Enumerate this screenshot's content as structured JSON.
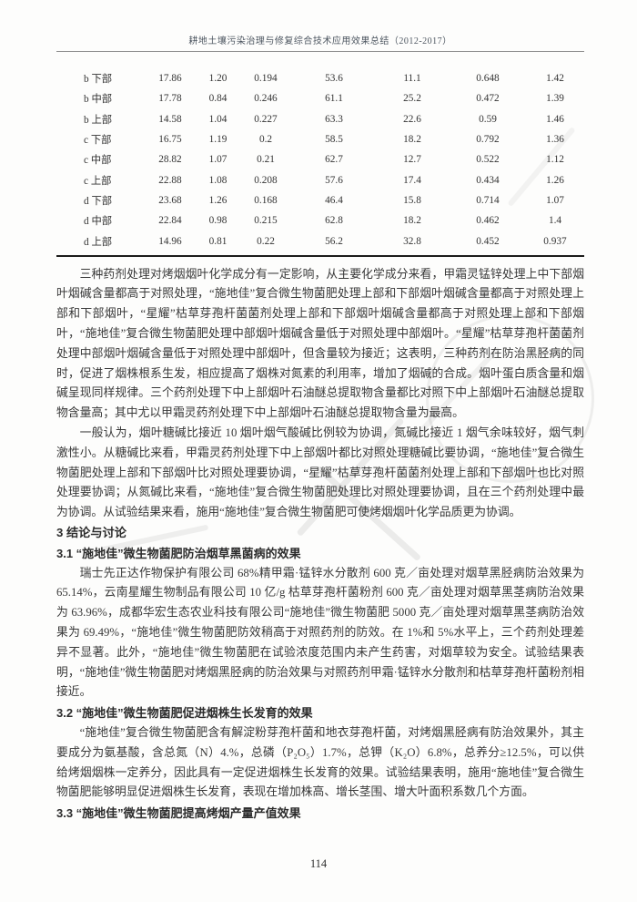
{
  "page": {
    "header_title": "耕地土壤污染治理与修复综合技术应用效果总结（2012-2017）",
    "page_number": "114"
  },
  "table": {
    "rows": [
      {
        "label": "b 下部",
        "values": [
          "17.86",
          "1.20",
          "0.194",
          "53.6",
          "11.1",
          "0.648",
          "1.42"
        ]
      },
      {
        "label": "b 中部",
        "values": [
          "17.78",
          "0.84",
          "0.246",
          "61.1",
          "25.2",
          "0.472",
          "1.39"
        ]
      },
      {
        "label": "b 上部",
        "values": [
          "14.58",
          "1.04",
          "0.227",
          "63.3",
          "22.6",
          "0.59",
          "1.46"
        ]
      },
      {
        "label": "c 下部",
        "values": [
          "16.75",
          "1.19",
          "0.2",
          "58.5",
          "18.2",
          "0.792",
          "1.36"
        ]
      },
      {
        "label": "c 中部",
        "values": [
          "28.82",
          "1.07",
          "0.21",
          "62.7",
          "12.7",
          "0.522",
          "1.12"
        ]
      },
      {
        "label": "c 上部",
        "values": [
          "22.88",
          "1.08",
          "0.208",
          "57.6",
          "17.4",
          "0.434",
          "1.26"
        ]
      },
      {
        "label": "d 下部",
        "values": [
          "23.68",
          "1.26",
          "0.168",
          "46.4",
          "15.8",
          "0.714",
          "1.07"
        ]
      },
      {
        "label": "d 中部",
        "values": [
          "22.84",
          "0.98",
          "0.215",
          "62.8",
          "18.2",
          "0.462",
          "1.4"
        ]
      },
      {
        "label": "d 上部",
        "values": [
          "14.96",
          "0.81",
          "0.22",
          "56.2",
          "32.8",
          "0.452",
          "0.937"
        ]
      }
    ]
  },
  "body": {
    "paragraph_1": "三种药剂处理对烤烟烟叶化学成分有一定影响，从主要化学成分来看，甲霜灵锰锌处理上中下部烟叶烟碱含量都高于对照处理，“施地佳”复合微生物菌肥处理上部和下部烟叶烟碱含量都高于对照处理上部和下部烟叶，“星耀”枯草芽孢杆菌菌剂处理上部和下部烟叶烟碱含量都高于对照处理上部和下部烟叶，“施地佳”复合微生物菌肥处理中部烟叶烟碱含量低于对照处理中部烟叶。“星耀”枯草芽孢杆菌菌剂处理中部烟叶烟碱含量低于对照处理中部烟叶，但含量较为接近；这表明，三种药剂在防治黑胫病的同时，促进了烟株根系生发，相应提高了烟株对氮素的利用率，增加了烟碱的合成。烟叶蛋白质含量和烟碱呈现同样规律。三个药剂处理下中上部烟叶石油醚总提取物含量都比对照下中上部烟叶石油醚总提取物含量高；其中尤以甲霜灵药剂处理下中上部烟叶石油醚总提取物含量为最高。",
    "paragraph_2": "一般认为，烟叶糖碱比接近 10 烟叶烟气酸碱比例较为协调，氮碱比接近 1 烟气余味较好，烟气刺激性小。从糖碱比来看，甲霜灵药剂处理下中上部烟叶都比对照处理糖碱比要协调，“施地佳”复合微生物菌肥处理上部和下部烟叶比对照处理要协调，“星耀”枯草芽孢杆菌菌剂处理上部和下部烟叶也比对照处理要协调；从氮碱比来看，“施地佳”复合微生物菌肥处理比对照处理要协调，且在三个药剂处理中最为协调。从试验结果来看，施用“施地佳”复合微生物菌肥可使烤烟烟叶化学品质更为协调。",
    "section_heading": "3 结论与讨论",
    "sub_heading_3_1": "3.1 “施地佳”微生物菌肥防治烟草黑菌病的效果",
    "paragraph_3_1": "瑞士先正达作物保护有限公司 68%精甲霜·锰锌水分散剂 600 克／亩处理对烟草黑胫病防治效果为 65.14%，云南星耀生物制品有限公司 10 亿/g 枯草芽孢杆菌粉剂 600 克／亩处理对烟草黑茎病防治效果为 63.96%，成都华宏生态农业科技有限公司“施地佳”微生物菌肥 5000 克／亩处理对烟草黑茎病防治效果为 69.49%，“施地佳”微生物菌肥防效稍高于对照药剂的防效。在 1%和 5%水平上，三个药剂处理差异不显著。此外，“施地佳”微生物菌肥在试验浓度范围内未产生药害，对烟草较为安全。试验结果表明，“施地佳”微生物菌肥对烤烟黑胫病的防治效果与对照药剂甲霜·锰锌水分散剂和枯草芽孢杆菌粉剂相接近。",
    "sub_heading_3_2": "3.2 “施地佳”微生物菌肥促进烟株生长发育的效果",
    "paragraph_3_2": "“施地佳”复合微生物菌肥含有解淀粉芽孢杆菌和地衣芽孢杆菌，对烤烟黑胫病有防治效果外，其主要成分为氨基酸，含总氮（N）4.%，总磷（P₂O₅）1.7%，总钾（K₂O）6.8%，总养分≥12.5%，可以供给烤烟烟株一定养分，因此具有一定促进烟株生长发育的效果。试验结果表明，施用“施地佳”复合微生物菌肥能够明显促进烟株生长发育，表现在增加株高、增长茎围、增大叶面积系数几个方面。",
    "sub_heading_3_3": "3.3 “施地佳”微生物菌肥提高烤烟产量产值效果"
  }
}
